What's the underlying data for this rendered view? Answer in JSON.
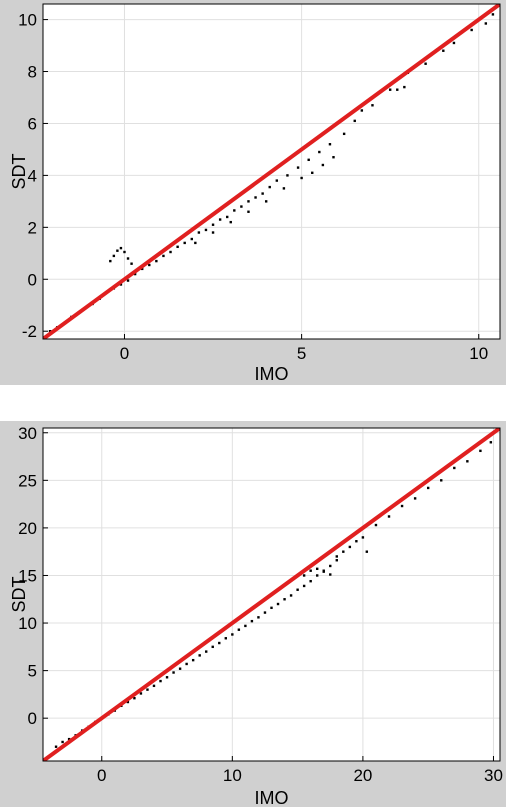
{
  "colors": {
    "figure_background": "#d0d0d0",
    "plot_background": "#ffffff",
    "points": "#000000",
    "identity_line": "#e02020",
    "grid": "#e0e0e0"
  },
  "chart_data": [
    {
      "type": "scatter",
      "title": "",
      "xlabel": "IMO",
      "ylabel": "SDT",
      "xlim": [
        -2.3,
        10.6
      ],
      "ylim": [
        -2.3,
        10.6
      ],
      "xticks": [
        0,
        5,
        10
      ],
      "xtick_labels": [
        "0",
        "5",
        "10"
      ],
      "yticks": [
        -2,
        0,
        2,
        4,
        6,
        8,
        10
      ],
      "ytick_labels": [
        "-2",
        "0",
        "2",
        "4",
        "6",
        "8",
        "10"
      ],
      "grid": true,
      "reference_line": {
        "from": [
          -2.3,
          -2.3
        ],
        "to": [
          10.6,
          10.6
        ],
        "color": "#e02020"
      },
      "series": [
        {
          "points": [
            [
              -2.1,
              -2.0
            ],
            [
              -1.9,
              -1.85
            ],
            [
              -1.7,
              -1.7
            ],
            [
              -1.5,
              -1.45
            ],
            [
              -1.3,
              -1.3
            ],
            [
              -1.1,
              -1.1
            ],
            [
              -0.9,
              -0.95
            ],
            [
              -0.7,
              -0.75
            ],
            [
              -0.5,
              -0.5
            ],
            [
              -0.3,
              -0.35
            ],
            [
              -0.1,
              -0.2
            ],
            [
              0.1,
              -0.05
            ],
            [
              -0.3,
              0.9
            ],
            [
              -0.2,
              1.1
            ],
            [
              -0.1,
              1.2
            ],
            [
              0.0,
              1.05
            ],
            [
              0.1,
              0.8
            ],
            [
              -0.4,
              0.7
            ],
            [
              0.2,
              0.6
            ],
            [
              0.3,
              0.2
            ],
            [
              0.5,
              0.4
            ],
            [
              0.7,
              0.55
            ],
            [
              0.9,
              0.7
            ],
            [
              1.1,
              0.9
            ],
            [
              1.3,
              1.05
            ],
            [
              1.5,
              1.25
            ],
            [
              1.7,
              1.4
            ],
            [
              1.9,
              1.55
            ],
            [
              2.1,
              1.8
            ],
            [
              2.3,
              1.9
            ],
            [
              2.5,
              2.1
            ],
            [
              2.7,
              2.3
            ],
            [
              2.9,
              2.4
            ],
            [
              3.1,
              2.65
            ],
            [
              3.3,
              2.8
            ],
            [
              3.5,
              3.0
            ],
            [
              3.7,
              3.15
            ],
            [
              3.9,
              3.3
            ],
            [
              4.1,
              3.55
            ],
            [
              2.0,
              1.4
            ],
            [
              2.5,
              1.8
            ],
            [
              3.0,
              2.2
            ],
            [
              3.5,
              2.6
            ],
            [
              4.0,
              3.0
            ],
            [
              4.5,
              3.5
            ],
            [
              5.0,
              3.9
            ],
            [
              4.3,
              3.8
            ],
            [
              4.6,
              4.0
            ],
            [
              4.9,
              4.3
            ],
            [
              5.2,
              4.6
            ],
            [
              5.5,
              4.9
            ],
            [
              5.8,
              5.2
            ],
            [
              5.3,
              4.1
            ],
            [
              5.6,
              4.4
            ],
            [
              5.9,
              4.7
            ],
            [
              6.2,
              5.6
            ],
            [
              6.5,
              6.1
            ],
            [
              6.7,
              6.5
            ],
            [
              7.0,
              6.7
            ],
            [
              7.5,
              7.3
            ],
            [
              7.7,
              7.3
            ],
            [
              7.9,
              7.4
            ],
            [
              8.0,
              7.95
            ],
            [
              8.5,
              8.3
            ],
            [
              9.0,
              8.8
            ],
            [
              9.3,
              9.1
            ],
            [
              9.8,
              9.6
            ],
            [
              10.2,
              9.85
            ],
            [
              10.4,
              10.2
            ]
          ]
        }
      ]
    },
    {
      "type": "scatter",
      "title": "",
      "xlabel": "IMO",
      "ylabel": "SDT",
      "xlim": [
        -4.5,
        30.5
      ],
      "ylim": [
        -4.5,
        30.5
      ],
      "xticks": [
        0,
        10,
        20,
        30
      ],
      "xtick_labels": [
        "0",
        "10",
        "20",
        "30"
      ],
      "yticks": [
        0,
        5,
        10,
        15,
        20,
        25,
        30
      ],
      "ytick_labels": [
        "0",
        "5",
        "10",
        "15",
        "20",
        "25",
        "30"
      ],
      "grid": true,
      "reference_line": {
        "from": [
          -4.5,
          -4.5
        ],
        "to": [
          30.5,
          30.5
        ],
        "color": "#e02020"
      },
      "series": [
        {
          "points": [
            [
              -3.5,
              -3.0
            ],
            [
              -3.0,
              -2.5
            ],
            [
              -2.5,
              -2.2
            ],
            [
              -2.0,
              -1.8
            ],
            [
              -1.5,
              -1.3
            ],
            [
              -1.0,
              -0.9
            ],
            [
              -0.5,
              -0.4
            ],
            [
              0.0,
              0.0
            ],
            [
              0.5,
              0.4
            ],
            [
              1.0,
              0.8
            ],
            [
              1.5,
              1.3
            ],
            [
              2.0,
              1.7
            ],
            [
              2.5,
              2.1
            ],
            [
              3.0,
              2.6
            ],
            [
              3.5,
              3.0
            ],
            [
              4.0,
              3.4
            ],
            [
              4.5,
              3.9
            ],
            [
              5.0,
              4.3
            ],
            [
              5.5,
              4.8
            ],
            [
              6.0,
              5.2
            ],
            [
              6.5,
              5.7
            ],
            [
              7.0,
              6.1
            ],
            [
              7.5,
              6.6
            ],
            [
              8.0,
              7.0
            ],
            [
              8.5,
              7.5
            ],
            [
              9.0,
              7.9
            ],
            [
              9.5,
              8.4
            ],
            [
              10.0,
              8.8
            ],
            [
              10.5,
              9.3
            ],
            [
              11.0,
              9.7
            ],
            [
              11.5,
              10.2
            ],
            [
              12.0,
              10.6
            ],
            [
              12.5,
              11.1
            ],
            [
              13.0,
              11.6
            ],
            [
              13.5,
              12.0
            ],
            [
              14.0,
              12.5
            ],
            [
              14.5,
              12.9
            ],
            [
              15.0,
              13.5
            ],
            [
              15.5,
              13.9
            ],
            [
              16.0,
              14.4
            ],
            [
              16.5,
              15.0
            ],
            [
              17.0,
              15.5
            ],
            [
              17.5,
              16.0
            ],
            [
              18.0,
              16.6
            ],
            [
              15.5,
              15.0
            ],
            [
              16.0,
              15.5
            ],
            [
              16.5,
              15.7
            ],
            [
              17.0,
              15.4
            ],
            [
              17.5,
              15.1
            ],
            [
              18.0,
              17.0
            ],
            [
              18.5,
              17.5
            ],
            [
              19.0,
              18.0
            ],
            [
              19.5,
              18.6
            ],
            [
              20.0,
              19.0
            ],
            [
              20.3,
              17.5
            ],
            [
              21.0,
              20.3
            ],
            [
              22.0,
              21.2
            ],
            [
              23.0,
              22.3
            ],
            [
              24.0,
              23.1
            ],
            [
              25.0,
              24.2
            ],
            [
              26.0,
              25.0
            ],
            [
              27.0,
              26.3
            ],
            [
              28.0,
              27.0
            ],
            [
              29.0,
              28.1
            ],
            [
              29.8,
              29.0
            ]
          ]
        }
      ]
    }
  ]
}
